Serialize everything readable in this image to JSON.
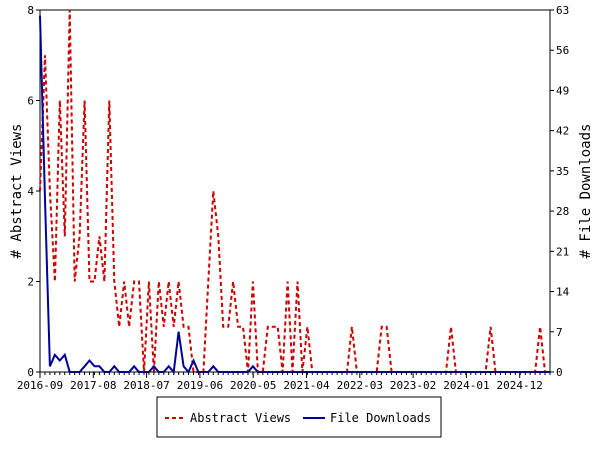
{
  "chart_data": {
    "type": "line",
    "x_ticks": [
      "2016-09",
      "2017-08",
      "2018-07",
      "2019-06",
      "2020-05",
      "2021-04",
      "2022-03",
      "2023-02",
      "2024-01",
      "2024-12"
    ],
    "y_left": {
      "label": "# Abstract Views",
      "min": 0,
      "max": 8,
      "ticks": [
        0,
        2,
        4,
        6,
        8
      ]
    },
    "y_right": {
      "label": "# File Downloads",
      "min": 0,
      "max": 63,
      "ticks": [
        0,
        7,
        14,
        21,
        28,
        35,
        42,
        49,
        56,
        63
      ]
    },
    "series": [
      {
        "name": "Abstract Views",
        "axis": "left",
        "color": "#cc0000",
        "style": "dashed",
        "values": [
          4,
          7,
          4,
          2,
          6,
          3,
          8,
          2,
          3,
          6,
          2,
          2,
          3,
          2,
          6,
          2,
          1,
          2,
          1,
          2,
          2,
          0,
          2,
          0,
          2,
          1,
          2,
          1,
          2,
          1,
          1,
          0,
          0,
          0,
          2,
          4,
          3,
          1,
          1,
          2,
          1,
          1,
          0,
          2,
          0,
          0,
          1,
          1,
          1,
          0,
          2,
          0,
          2,
          0,
          1,
          0,
          0,
          0,
          0,
          0,
          0,
          0,
          0,
          1,
          0,
          0,
          0,
          0,
          0,
          1,
          1,
          0,
          0,
          0,
          0,
          0,
          0,
          0,
          0,
          0,
          0,
          0,
          0,
          1,
          0,
          0,
          0,
          0,
          0,
          0,
          0,
          1,
          0,
          0,
          0,
          0,
          0,
          0,
          0,
          0,
          0,
          1,
          0,
          0
        ]
      },
      {
        "name": "File Downloads",
        "axis": "right",
        "color": "#000099",
        "style": "solid",
        "values": [
          62,
          30,
          1,
          3,
          2,
          3,
          0,
          0,
          0,
          1,
          2,
          1,
          1,
          0,
          0,
          1,
          0,
          0,
          0,
          1,
          0,
          0,
          0,
          1,
          0,
          0,
          1,
          0,
          7,
          1,
          0,
          2,
          0,
          0,
          0,
          1,
          0,
          0,
          0,
          0,
          0,
          0,
          0,
          1,
          0,
          0,
          0,
          0,
          0,
          0,
          0,
          0,
          0,
          0,
          0,
          0,
          0,
          0,
          0,
          0,
          0,
          0,
          0,
          0,
          0,
          0,
          0,
          0,
          0,
          0,
          0,
          0,
          0,
          0,
          0,
          0,
          0,
          0,
          0,
          0,
          0,
          0,
          0,
          0,
          0,
          0,
          0,
          0,
          0,
          0,
          0,
          0,
          0,
          0,
          0,
          0,
          0,
          0,
          0,
          0,
          0,
          0,
          0,
          0
        ]
      }
    ],
    "legend": {
      "placement": "bottom-center",
      "entries": [
        "Abstract Views",
        "File Downloads"
      ]
    },
    "grid": false
  }
}
